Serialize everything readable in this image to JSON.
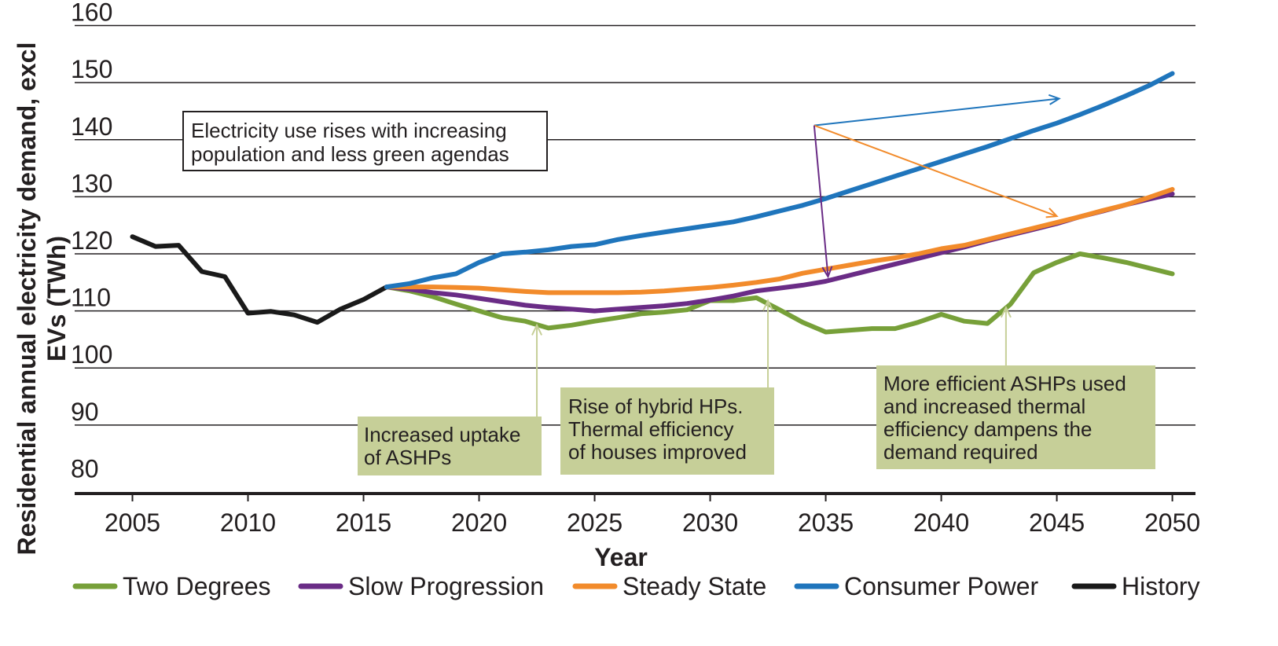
{
  "chart_data": {
    "type": "line",
    "xlabel": "Year",
    "ylabel_lines": [
      "Residential annual electricity demand, excl",
      "EVs (TWh)"
    ],
    "xlim": [
      2002.5,
      2051
    ],
    "ylim": [
      78,
      162
    ],
    "xticks": [
      "2005",
      "2010",
      "2015",
      "2020",
      "2025",
      "2030",
      "2035",
      "2040",
      "2045",
      "2050"
    ],
    "yticks": [
      "80",
      "90",
      "100",
      "110",
      "120",
      "130",
      "140",
      "150",
      "160"
    ],
    "grid": "horizontal",
    "legend_position": "bottom",
    "series": [
      {
        "name": "Two Degrees",
        "color": "#77a039",
        "x": [
          2016,
          2017,
          2018,
          2019,
          2020,
          2021,
          2022,
          2023,
          2024,
          2025,
          2026,
          2027,
          2028,
          2029,
          2030,
          2031,
          2032,
          2033,
          2034,
          2035,
          2036,
          2037,
          2038,
          2039,
          2040,
          2041,
          2042,
          2043,
          2044,
          2045,
          2046,
          2047,
          2048,
          2049,
          2050
        ],
        "values": [
          114.2,
          113.5,
          112.5,
          111.2,
          110,
          108.8,
          108.2,
          107,
          107.5,
          108.2,
          108.8,
          109.5,
          109.8,
          110.2,
          111.8,
          111.8,
          112.3,
          110.2,
          108,
          106.3,
          106.6,
          106.9,
          106.9,
          108,
          109.4,
          108.2,
          107.8,
          111.2,
          116.7,
          118.5,
          120,
          119.3,
          118.5,
          117.5,
          116.5
        ]
      },
      {
        "name": "Slow Progression",
        "color": "#6a2c86",
        "x": [
          2016,
          2017,
          2018,
          2019,
          2020,
          2021,
          2022,
          2023,
          2024,
          2025,
          2026,
          2027,
          2028,
          2029,
          2030,
          2031,
          2032,
          2033,
          2034,
          2035,
          2036,
          2037,
          2038,
          2039,
          2040,
          2041,
          2042,
          2043,
          2044,
          2045,
          2046,
          2047,
          2048,
          2049,
          2050
        ],
        "values": [
          114.2,
          113.8,
          113.2,
          112.8,
          112.2,
          111.6,
          111,
          110.6,
          110.3,
          110,
          110.3,
          110.6,
          110.9,
          111.3,
          111.9,
          112.6,
          113.5,
          114,
          114.5,
          115.2,
          116.2,
          117.2,
          118.2,
          119.2,
          120.2,
          121.2,
          122.3,
          123.3,
          124.3,
          125.3,
          126.5,
          127.5,
          128.6,
          129.6,
          130.5
        ]
      },
      {
        "name": "Steady State",
        "color": "#f28b2b",
        "x": [
          2016,
          2017,
          2018,
          2019,
          2020,
          2021,
          2022,
          2023,
          2024,
          2025,
          2026,
          2027,
          2028,
          2029,
          2030,
          2031,
          2032,
          2033,
          2034,
          2035,
          2036,
          2037,
          2038,
          2039,
          2040,
          2041,
          2042,
          2043,
          2044,
          2045,
          2046,
          2047,
          2048,
          2049,
          2050
        ],
        "values": [
          114.2,
          114.2,
          114.2,
          114.1,
          114,
          113.7,
          113.4,
          113.2,
          113.2,
          113.2,
          113.2,
          113.3,
          113.5,
          113.8,
          114.1,
          114.5,
          115,
          115.6,
          116.6,
          117.3,
          118,
          118.7,
          119.3,
          120,
          120.9,
          121.5,
          122.5,
          123.5,
          124.5,
          125.5,
          126.5,
          127.6,
          128.6,
          129.9,
          131.3
        ]
      },
      {
        "name": "Consumer Power",
        "color": "#1f75bc",
        "x": [
          2016,
          2017,
          2018,
          2019,
          2020,
          2021,
          2022,
          2023,
          2024,
          2025,
          2026,
          2027,
          2028,
          2029,
          2030,
          2031,
          2032,
          2033,
          2034,
          2035,
          2036,
          2037,
          2038,
          2039,
          2040,
          2041,
          2042,
          2043,
          2044,
          2045,
          2046,
          2047,
          2048,
          2049,
          2050
        ],
        "values": [
          114.2,
          114.8,
          115.8,
          116.5,
          118.5,
          120,
          120.3,
          120.7,
          121.3,
          121.6,
          122.5,
          123.2,
          123.8,
          124.4,
          125,
          125.6,
          126.5,
          127.5,
          128.5,
          129.7,
          131,
          132.3,
          133.6,
          134.9,
          136.2,
          137.5,
          138.8,
          140.2,
          141.6,
          142.9,
          144.4,
          146,
          147.7,
          149.5,
          151.6
        ]
      },
      {
        "name": "History",
        "color": "#1a1a1a",
        "x": [
          2005,
          2006,
          2007,
          2008,
          2009,
          2010,
          2011,
          2012,
          2013,
          2014,
          2015,
          2016
        ],
        "values": [
          123,
          121.3,
          121.5,
          116.9,
          116,
          109.6,
          109.9,
          109.3,
          108,
          110.3,
          112,
          114.2
        ]
      }
    ],
    "annotations": {
      "top": {
        "lines": [
          "Electricity use rises with increasing",
          "population and less green agendas"
        ],
        "origin": [
          2034.5,
          142.5
        ],
        "arrows": [
          {
            "to": [
              2045.1,
              147.2
            ],
            "color": "#1f75bc"
          },
          {
            "to": [
              2045.0,
              126.6
            ],
            "color": "#f28b2b"
          },
          {
            "to": [
              2035.1,
              116.0
            ],
            "color": "#6a2c86"
          }
        ]
      },
      "boxes": [
        {
          "lines": [
            "Increased uptake",
            "of ASHPs"
          ],
          "arrow_x": 2022.5,
          "arrow_to_y": 107.5
        },
        {
          "lines": [
            "Rise of hybrid HPs.",
            "Thermal efficiency",
            "of houses improved"
          ],
          "arrow_x": 2032.5,
          "arrow_to_y": 111.8
        },
        {
          "lines": [
            "More efficient ASHPs used",
            "and increased thermal",
            "efficiency dampens the",
            "demand required"
          ],
          "arrow_x": 2042.8,
          "arrow_to_y": 110.6
        }
      ]
    }
  }
}
